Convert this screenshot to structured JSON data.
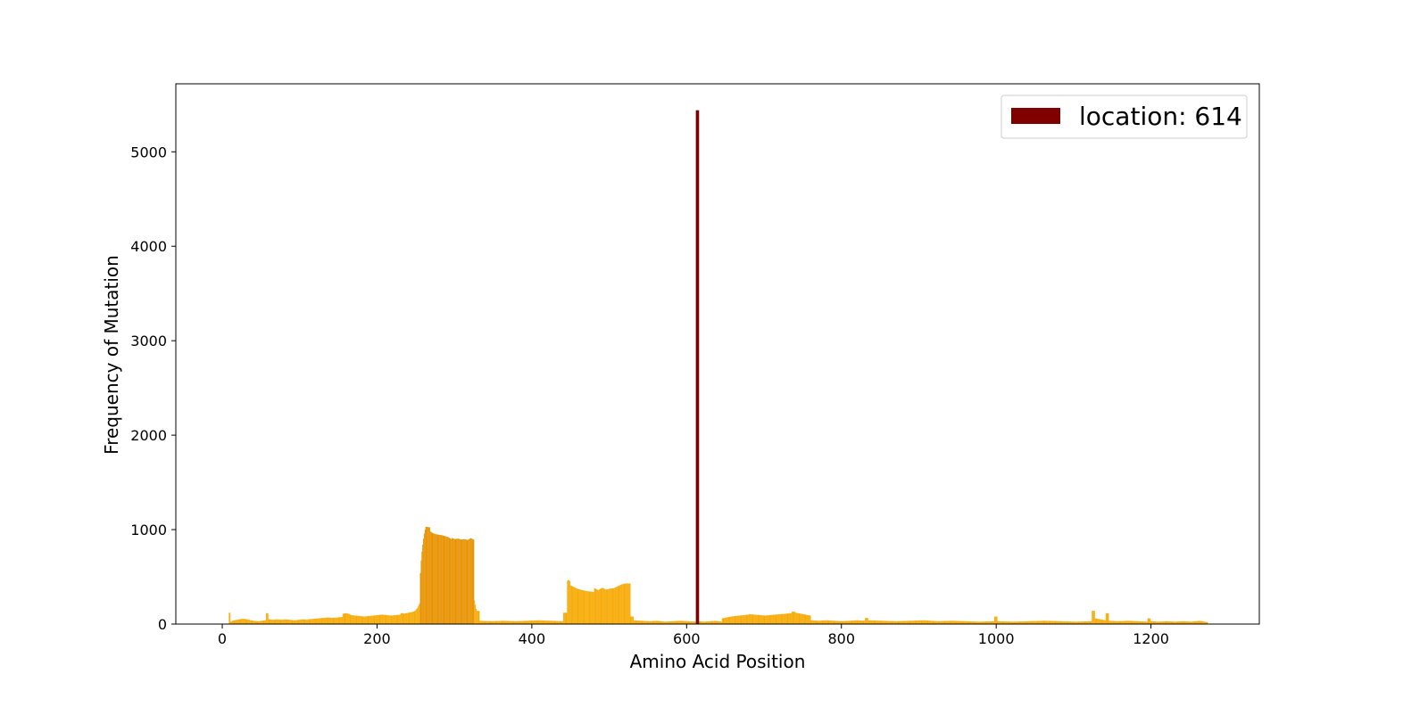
{
  "chart_data": {
    "type": "bar",
    "title": "",
    "xlabel": "Amino Acid Position",
    "ylabel": "Frequency of Mutation",
    "xlim": [
      -60,
      1340
    ],
    "ylim": [
      0,
      5720
    ],
    "xticks": [
      0,
      200,
      400,
      600,
      800,
      1000,
      1200
    ],
    "yticks": [
      0,
      1000,
      2000,
      3000,
      4000,
      5000
    ],
    "grid": false,
    "legend": {
      "position": "top-right",
      "entries": [
        {
          "label": "location: 614",
          "color": "#800000"
        }
      ]
    },
    "colors": {
      "base": "#f7aa05",
      "dark": "#e89200",
      "highlight": "#800000"
    },
    "bar_width": 3,
    "highlight": {
      "x": 614,
      "value": 5440
    },
    "segments": [
      {
        "from": 1,
        "to": 8,
        "values": [
          5
        ]
      },
      {
        "from": 9,
        "to": 10,
        "values": [
          120
        ]
      },
      {
        "from": 11,
        "to": 18,
        "values": [
          25,
          35,
          40,
          45
        ]
      },
      {
        "from": 19,
        "to": 35,
        "values": [
          45,
          50,
          55,
          55,
          50,
          45
        ]
      },
      {
        "from": 36,
        "to": 56,
        "values": [
          40,
          35,
          30,
          35,
          40
        ]
      },
      {
        "from": 57,
        "to": 59,
        "values": [
          115
        ]
      },
      {
        "from": 60,
        "to": 110,
        "values": [
          50,
          45,
          50,
          45,
          50,
          45,
          40,
          45,
          50,
          45
        ]
      },
      {
        "from": 111,
        "to": 155,
        "values": [
          50,
          55,
          60,
          65,
          70,
          65,
          70,
          75
        ]
      },
      {
        "from": 156,
        "to": 165,
        "values": [
          110,
          115,
          105
        ]
      },
      {
        "from": 166,
        "to": 230,
        "values": [
          95,
          90,
          85,
          80,
          85,
          90,
          95,
          100,
          95,
          90,
          95,
          100
        ]
      },
      {
        "from": 231,
        "to": 234,
        "values": [
          115
        ]
      },
      {
        "from": 235,
        "to": 255,
        "values": [
          110,
          115,
          120,
          125,
          130,
          140,
          170,
          220
        ]
      },
      {
        "from": 256,
        "to": 262,
        "values": [
          540,
          700,
          800,
          880,
          950,
          1000
        ],
        "color": "dark"
      },
      {
        "from": 263,
        "to": 268,
        "values": [
          1030,
          1025
        ],
        "color": "dark"
      },
      {
        "from": 269,
        "to": 296,
        "values": [
          980,
          960,
          950,
          945,
          940,
          930,
          920,
          900
        ],
        "color": "dark"
      },
      {
        "from": 297,
        "to": 325,
        "values": [
          910,
          900,
          905,
          895,
          900,
          890,
          910,
          895
        ],
        "color": "dark"
      },
      {
        "from": 326,
        "to": 328,
        "values": [
          250,
          160
        ]
      },
      {
        "from": 329,
        "to": 332,
        "values": [
          140
        ]
      },
      {
        "from": 333,
        "to": 440,
        "values": [
          35,
          30,
          35,
          30,
          35,
          40,
          35,
          30
        ]
      },
      {
        "from": 441,
        "to": 445,
        "values": [
          120
        ]
      },
      {
        "from": 446,
        "to": 449,
        "values": [
          460,
          470,
          455
        ]
      },
      {
        "from": 450,
        "to": 480,
        "values": [
          410,
          390,
          370,
          360,
          350,
          345,
          340
        ]
      },
      {
        "from": 481,
        "to": 521,
        "values": [
          380,
          360,
          385,
          365,
          375,
          380,
          400,
          420,
          430
        ]
      },
      {
        "from": 522,
        "to": 527,
        "values": [
          430
        ]
      },
      {
        "from": 528,
        "to": 531,
        "values": [
          80
        ]
      },
      {
        "from": 532,
        "to": 612,
        "values": [
          40,
          35,
          30,
          35,
          25,
          30,
          35,
          30,
          25
        ]
      },
      {
        "from": 616,
        "to": 645,
        "values": [
          30,
          25,
          30,
          35,
          25
        ]
      },
      {
        "from": 646,
        "to": 680,
        "values": [
          60,
          70,
          80,
          85,
          90,
          95,
          100
        ]
      },
      {
        "from": 681,
        "to": 735,
        "values": [
          105,
          100,
          95,
          90,
          95,
          100,
          105,
          110,
          115
        ]
      },
      {
        "from": 736,
        "to": 740,
        "values": [
          130
        ]
      },
      {
        "from": 741,
        "to": 760,
        "values": [
          120,
          110,
          100,
          90
        ]
      },
      {
        "from": 761,
        "to": 830,
        "values": [
          40,
          35,
          40,
          35,
          30,
          35,
          40,
          35
        ]
      },
      {
        "from": 831,
        "to": 834,
        "values": [
          65
        ]
      },
      {
        "from": 835,
        "to": 997,
        "values": [
          40,
          35,
          30,
          35,
          40,
          30,
          35,
          30,
          25,
          30
        ]
      },
      {
        "from": 998,
        "to": 1001,
        "values": [
          80
        ]
      },
      {
        "from": 1002,
        "to": 1123,
        "values": [
          30,
          25,
          30,
          35,
          30,
          25,
          30
        ]
      },
      {
        "from": 1124,
        "to": 1127,
        "values": [
          140
        ]
      },
      {
        "from": 1128,
        "to": 1141,
        "values": [
          60,
          50,
          40
        ]
      },
      {
        "from": 1142,
        "to": 1145,
        "values": [
          115
        ]
      },
      {
        "from": 1146,
        "to": 1195,
        "values": [
          35,
          30,
          35,
          30,
          25
        ]
      },
      {
        "from": 1196,
        "to": 1199,
        "values": [
          60
        ]
      },
      {
        "from": 1200,
        "to": 1273,
        "values": [
          30,
          25,
          30,
          25,
          30,
          25,
          35,
          20
        ]
      }
    ]
  }
}
